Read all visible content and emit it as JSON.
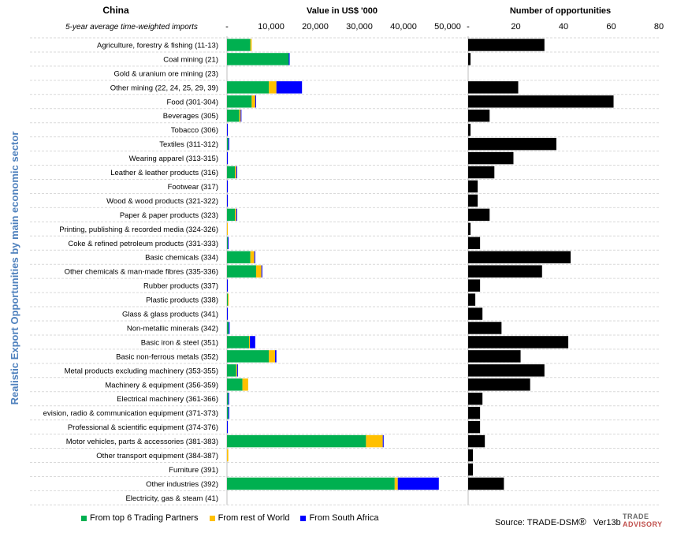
{
  "page": {
    "title": "China",
    "subtitle": "5-year average time-weighted imports",
    "vertical_title": "Realistic Export Opportunities by main economic sector",
    "source": "Source: TRADE-DSM",
    "registered_mark": "®",
    "version": "Ver13b",
    "logo_line1": "TRADE",
    "logo_line2": "ADVISORY"
  },
  "colors": {
    "top6": "#00b050",
    "rest": "#ffc000",
    "sa": "#0000ff",
    "opps": "#000000",
    "grid": "#d9d9d9"
  },
  "legend": [
    {
      "label": "From top 6 Trading Partners",
      "color": "#00b050"
    },
    {
      "label": "From rest of World",
      "color": "#ffc000"
    },
    {
      "label": "From South Africa",
      "color": "#0000ff"
    }
  ],
  "chart_data": [
    {
      "type": "bar",
      "orientation": "horizontal",
      "stacked": true,
      "title": "Value in US$ '000",
      "xlim": [
        0,
        50000
      ],
      "ticks": [
        "-",
        "10,000",
        "20,000",
        "30,000",
        "40,000",
        "50,000"
      ],
      "categories": [
        "Agriculture, forestry & fishing (11-13)",
        "Coal mining (21)",
        "Gold & uranium ore mining (23)",
        "Other mining (22, 24, 25, 29, 39)",
        "Food (301-304)",
        "Beverages (305)",
        "Tobacco (306)",
        "Textiles (311-312)",
        "Wearing apparel (313-315)",
        "Leather & leather products (316)",
        "Footwear (317)",
        "Wood & wood products (321-322)",
        "Paper & paper products (323)",
        "Printing, publishing & recorded media (324-326)",
        "Coke & refined petroleum products (331-333)",
        "Basic chemicals (334)",
        "Other chemicals & man-made fibres (335-336)",
        "Rubber products (337)",
        "Plastic products (338)",
        "Glass & glass products (341)",
        "Non-metallic minerals (342)",
        "Basic iron & steel (351)",
        "Basic non-ferrous metals (352)",
        "Metal products excluding machinery (353-355)",
        "Machinery & equipment (356-359)",
        "Electrical machinery (361-366)",
        "evision, radio & communication equipment (371-373)",
        "Professional & scientific equipment (374-376)",
        "Motor vehicles, parts & accessories (381-383)",
        "Other transport equipment (384-387)",
        "Furniture (391)",
        "Other industries (392)",
        "Electricity, gas & steam (41)"
      ],
      "series": [
        {
          "name": "From top 6 Trading Partners",
          "color": "#00b050",
          "values": [
            5300,
            14000,
            0,
            9500,
            5600,
            2800,
            0,
            300,
            0,
            1800,
            0,
            0,
            1800,
            0,
            200,
            5300,
            6600,
            0,
            200,
            0,
            400,
            5000,
            9500,
            2100,
            3500,
            300,
            300,
            0,
            31500,
            0,
            0,
            38000,
            0
          ]
        },
        {
          "name": "From rest of World",
          "color": "#ffc000",
          "values": [
            300,
            0,
            0,
            1700,
            800,
            300,
            0,
            0,
            0,
            300,
            0,
            0,
            300,
            100,
            0,
            900,
            1200,
            0,
            200,
            0,
            0,
            200,
            1400,
            200,
            1300,
            0,
            0,
            0,
            3800,
            300,
            0,
            700,
            0
          ]
        },
        {
          "name": "From South Africa",
          "color": "#0000ff",
          "values": [
            0,
            200,
            0,
            5800,
            200,
            100,
            100,
            200,
            200,
            200,
            200,
            200,
            200,
            0,
            100,
            200,
            200,
            200,
            0,
            200,
            200,
            1200,
            300,
            100,
            0,
            100,
            200,
            200,
            200,
            0,
            0,
            9300,
            0
          ]
        }
      ]
    },
    {
      "type": "bar",
      "orientation": "horizontal",
      "title": "Number of opportunities",
      "xlim": [
        0,
        80
      ],
      "ticks": [
        "-",
        "20",
        "40",
        "60",
        "80"
      ],
      "series": [
        {
          "name": "Number of opportunities",
          "color": "#000000",
          "values": [
            32,
            1,
            0,
            21,
            61,
            9,
            1,
            37,
            19,
            11,
            4,
            4,
            9,
            1,
            5,
            43,
            31,
            5,
            3,
            6,
            14,
            42,
            22,
            32,
            26,
            6,
            5,
            5,
            7,
            2,
            2,
            15,
            0
          ]
        }
      ]
    }
  ]
}
